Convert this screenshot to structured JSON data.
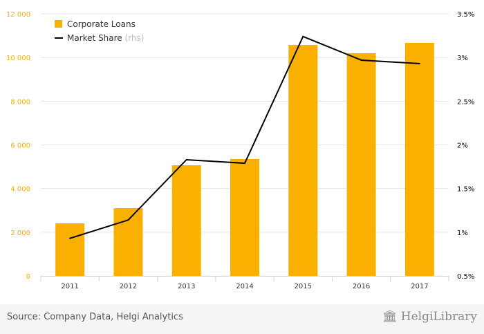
{
  "chart_data": {
    "type": "bar",
    "categories": [
      "2011",
      "2012",
      "2013",
      "2014",
      "2015",
      "2016",
      "2017"
    ],
    "series": [
      {
        "name": "Corporate Loans",
        "type": "bar",
        "axis": "left",
        "color": "#f9b000",
        "values": [
          2406,
          3100,
          5066,
          5350,
          10575,
          10195,
          10670
        ]
      },
      {
        "name": "Market Share",
        "suffix": "(rhs)",
        "type": "line",
        "axis": "right",
        "color": "#000000",
        "values": [
          0.93,
          1.14,
          1.83,
          1.79,
          3.24,
          2.97,
          2.93
        ]
      }
    ],
    "left_axis": {
      "ylim": [
        0,
        12000
      ],
      "ticks": [
        0,
        2000,
        4000,
        6000,
        8000,
        10000,
        12000
      ],
      "tick_labels": [
        "0",
        "2 000",
        "4 000",
        "6 000",
        "8 000",
        "10 000",
        "12 000"
      ],
      "color": "#f9b000"
    },
    "right_axis": {
      "ylim": [
        0.5,
        3.5
      ],
      "ticks": [
        0.5,
        1,
        1.5,
        2,
        2.5,
        3,
        3.5
      ],
      "tick_labels": [
        "0.5%",
        "1%",
        "1.5%",
        "2%",
        "2.5%",
        "3%",
        "3.5%"
      ]
    },
    "legend_placement": "top-left",
    "grid": true
  },
  "footer": {
    "source": "Source: Company Data, Helgi Analytics",
    "logo": "HelgiLibrary"
  }
}
